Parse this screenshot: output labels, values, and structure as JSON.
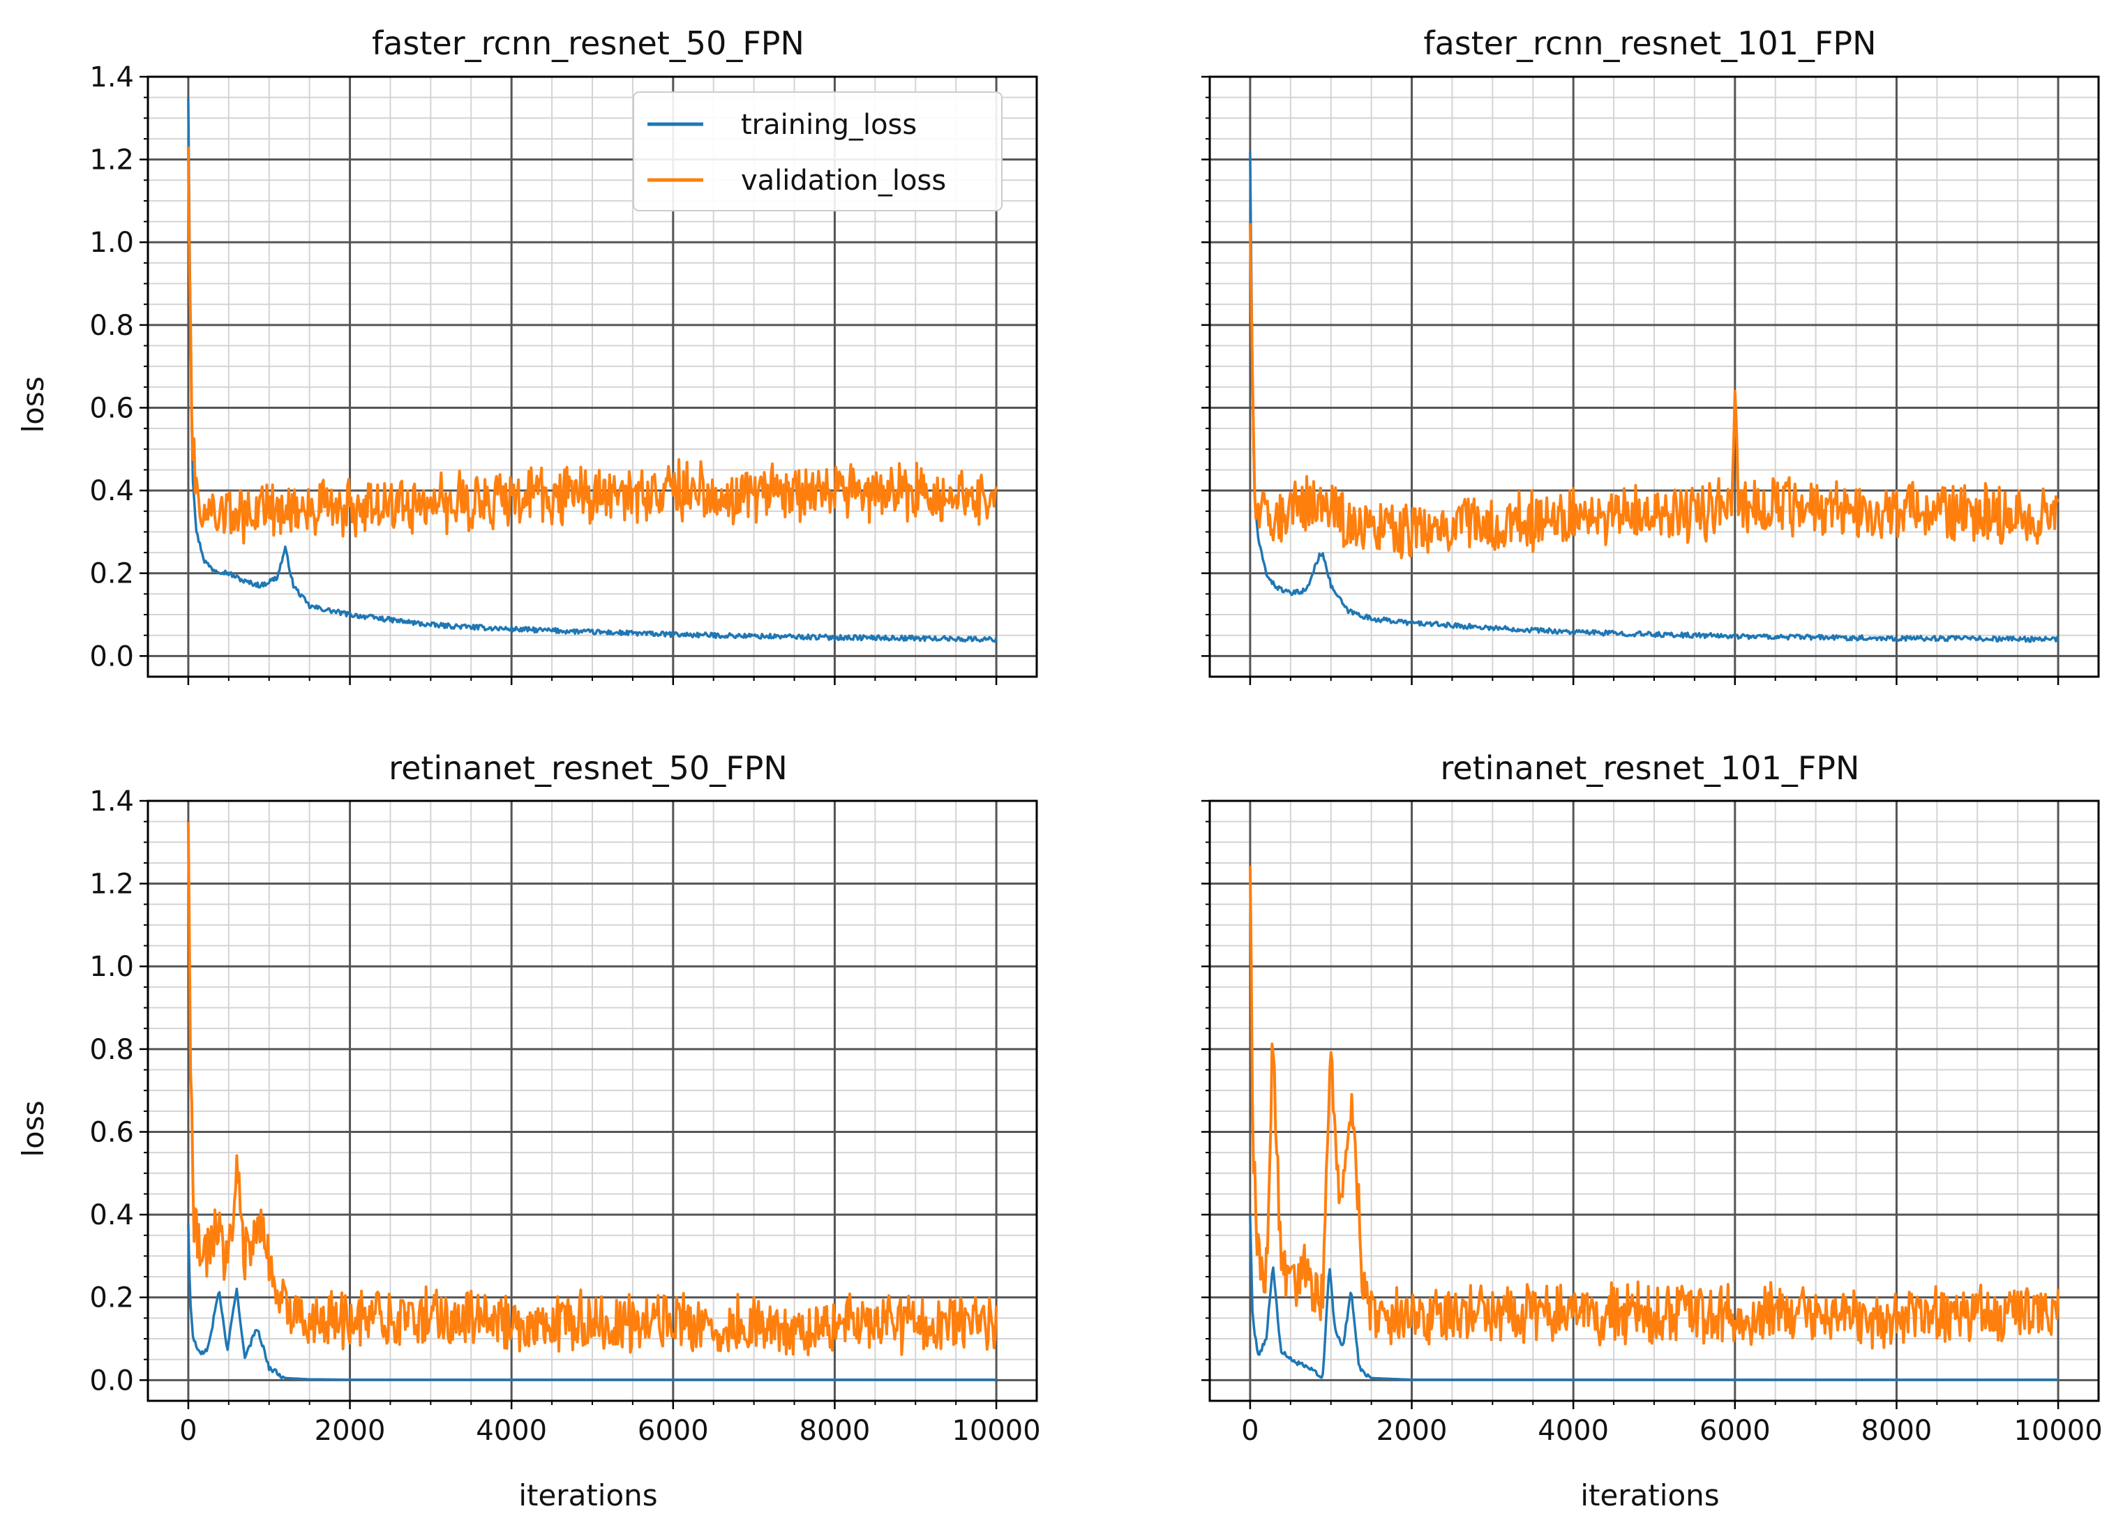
{
  "colors": {
    "training_loss": "#1f77b4",
    "validation_loss": "#ff7f0e",
    "grid_major": "#555555",
    "grid_minor": "#d4d4d4"
  },
  "chart_data": [
    {
      "type": "line",
      "title": "faster_rcnn_resnet_50_FPN",
      "xlabel": "",
      "ylabel": "loss",
      "xlim": [
        -500,
        10500
      ],
      "ylim": [
        -0.05,
        1.4
      ],
      "xticks": [],
      "yticks": [
        "0.0",
        "0.2",
        "0.4",
        "0.6",
        "0.8",
        "1.0",
        "1.2",
        "1.4"
      ],
      "grid": true,
      "legend": "top-right",
      "series": [
        {
          "name": "training_loss",
          "color": "#1f77b4",
          "x": [
            0,
            20,
            50,
            100,
            200,
            300,
            500,
            700,
            900,
            1100,
            1200,
            1300,
            1500,
            2000,
            3000,
            4000,
            5000,
            6000,
            7000,
            8000,
            9000,
            10000
          ],
          "values": [
            1.35,
            0.9,
            0.45,
            0.3,
            0.23,
            0.21,
            0.2,
            0.18,
            0.17,
            0.19,
            0.26,
            0.17,
            0.12,
            0.1,
            0.075,
            0.065,
            0.058,
            0.052,
            0.048,
            0.045,
            0.043,
            0.04
          ]
        },
        {
          "name": "validation_loss",
          "color": "#ff7f0e",
          "x": [
            0,
            20,
            50,
            100,
            200,
            500,
            1000,
            1500,
            2000,
            3000,
            4000,
            5000,
            6000,
            7000,
            8000,
            9000,
            10000
          ],
          "values": [
            1.25,
            0.9,
            0.5,
            0.38,
            0.35,
            0.34,
            0.35,
            0.36,
            0.36,
            0.37,
            0.38,
            0.39,
            0.4,
            0.39,
            0.39,
            0.4,
            0.38
          ]
        }
      ]
    },
    {
      "type": "line",
      "title": "faster_rcnn_resnet_101_FPN",
      "xlabel": "",
      "ylabel": "",
      "xlim": [
        -500,
        10500
      ],
      "ylim": [
        -0.05,
        1.4
      ],
      "xticks": [],
      "yticks": [],
      "grid": true,
      "series": [
        {
          "name": "training_loss",
          "color": "#1f77b4",
          "x": [
            0,
            20,
            50,
            100,
            200,
            300,
            500,
            700,
            850,
            900,
            1000,
            1200,
            1500,
            2000,
            3000,
            4000,
            5000,
            6000,
            7000,
            8000,
            9000,
            10000
          ],
          "values": [
            1.22,
            0.8,
            0.4,
            0.28,
            0.2,
            0.17,
            0.15,
            0.16,
            0.24,
            0.25,
            0.17,
            0.11,
            0.09,
            0.08,
            0.068,
            0.058,
            0.052,
            0.048,
            0.045,
            0.043,
            0.042,
            0.04
          ]
        },
        {
          "name": "validation_loss",
          "color": "#ff7f0e",
          "x": [
            0,
            20,
            50,
            100,
            300,
            600,
            900,
            1200,
            1500,
            2000,
            3000,
            4000,
            5000,
            5950,
            6000,
            6050,
            7000,
            8000,
            9000,
            10000
          ],
          "values": [
            1.07,
            0.8,
            0.45,
            0.33,
            0.34,
            0.36,
            0.38,
            0.32,
            0.3,
            0.31,
            0.32,
            0.33,
            0.34,
            0.36,
            0.6,
            0.36,
            0.36,
            0.35,
            0.35,
            0.34
          ]
        }
      ]
    },
    {
      "type": "line",
      "title": "retinanet_resnet_50_FPN",
      "xlabel": "iterations",
      "ylabel": "loss",
      "xlim": [
        -500,
        10500
      ],
      "ylim": [
        -0.05,
        1.4
      ],
      "xticks": [
        "0",
        "2000",
        "4000",
        "6000",
        "8000",
        "10000"
      ],
      "yticks": [
        "0.0",
        "0.2",
        "0.4",
        "0.6",
        "0.8",
        "1.0",
        "1.2",
        "1.4"
      ],
      "grid": true,
      "series": [
        {
          "name": "training_loss",
          "color": "#1f77b4",
          "x": [
            0,
            20,
            60,
            150,
            250,
            380,
            480,
            600,
            700,
            850,
            1000,
            1200,
            1500,
            2000,
            4000,
            6000,
            8000,
            10000
          ],
          "values": [
            0.38,
            0.2,
            0.1,
            0.06,
            0.08,
            0.22,
            0.07,
            0.22,
            0.05,
            0.13,
            0.03,
            0.005,
            0.002,
            0.001,
            0.001,
            0.001,
            0.001,
            0.001
          ]
        },
        {
          "name": "validation_loss",
          "color": "#ff7f0e",
          "x": [
            0,
            20,
            60,
            150,
            250,
            380,
            480,
            600,
            700,
            900,
            1100,
            1300,
            1600,
            2000,
            3000,
            4000,
            5000,
            6000,
            7000,
            8000,
            9000,
            10000
          ],
          "values": [
            1.38,
            0.9,
            0.4,
            0.28,
            0.3,
            0.38,
            0.26,
            0.5,
            0.3,
            0.36,
            0.2,
            0.16,
            0.15,
            0.15,
            0.15,
            0.14,
            0.14,
            0.14,
            0.13,
            0.13,
            0.14,
            0.13
          ]
        }
      ]
    },
    {
      "type": "line",
      "title": "retinanet_resnet_101_FPN",
      "xlabel": "iterations",
      "ylabel": "",
      "xlim": [
        -500,
        10500
      ],
      "ylim": [
        -0.05,
        1.4
      ],
      "xticks": [
        "0",
        "2000",
        "4000",
        "6000",
        "8000",
        "10000"
      ],
      "yticks": [],
      "grid": true,
      "series": [
        {
          "name": "training_loss",
          "color": "#1f77b4",
          "x": [
            0,
            30,
            100,
            200,
            280,
            380,
            500,
            700,
            900,
            980,
            1050,
            1150,
            1250,
            1350,
            1500,
            2000,
            4000,
            6000,
            8000,
            10000
          ],
          "values": [
            0.4,
            0.15,
            0.06,
            0.1,
            0.28,
            0.07,
            0.05,
            0.03,
            0.01,
            0.28,
            0.12,
            0.08,
            0.22,
            0.03,
            0.005,
            0.001,
            0.001,
            0.001,
            0.001,
            0.001
          ]
        },
        {
          "name": "validation_loss",
          "color": "#ff7f0e",
          "x": [
            0,
            30,
            100,
            200,
            280,
            380,
            500,
            700,
            900,
            1000,
            1100,
            1200,
            1280,
            1400,
            1600,
            2000,
            3000,
            4000,
            5000,
            6000,
            7000,
            8000,
            9000,
            10000
          ],
          "values": [
            1.28,
            0.6,
            0.3,
            0.25,
            0.82,
            0.3,
            0.25,
            0.27,
            0.2,
            0.82,
            0.4,
            0.55,
            0.65,
            0.2,
            0.15,
            0.15,
            0.16,
            0.16,
            0.16,
            0.16,
            0.16,
            0.15,
            0.16,
            0.16
          ]
        }
      ]
    }
  ]
}
